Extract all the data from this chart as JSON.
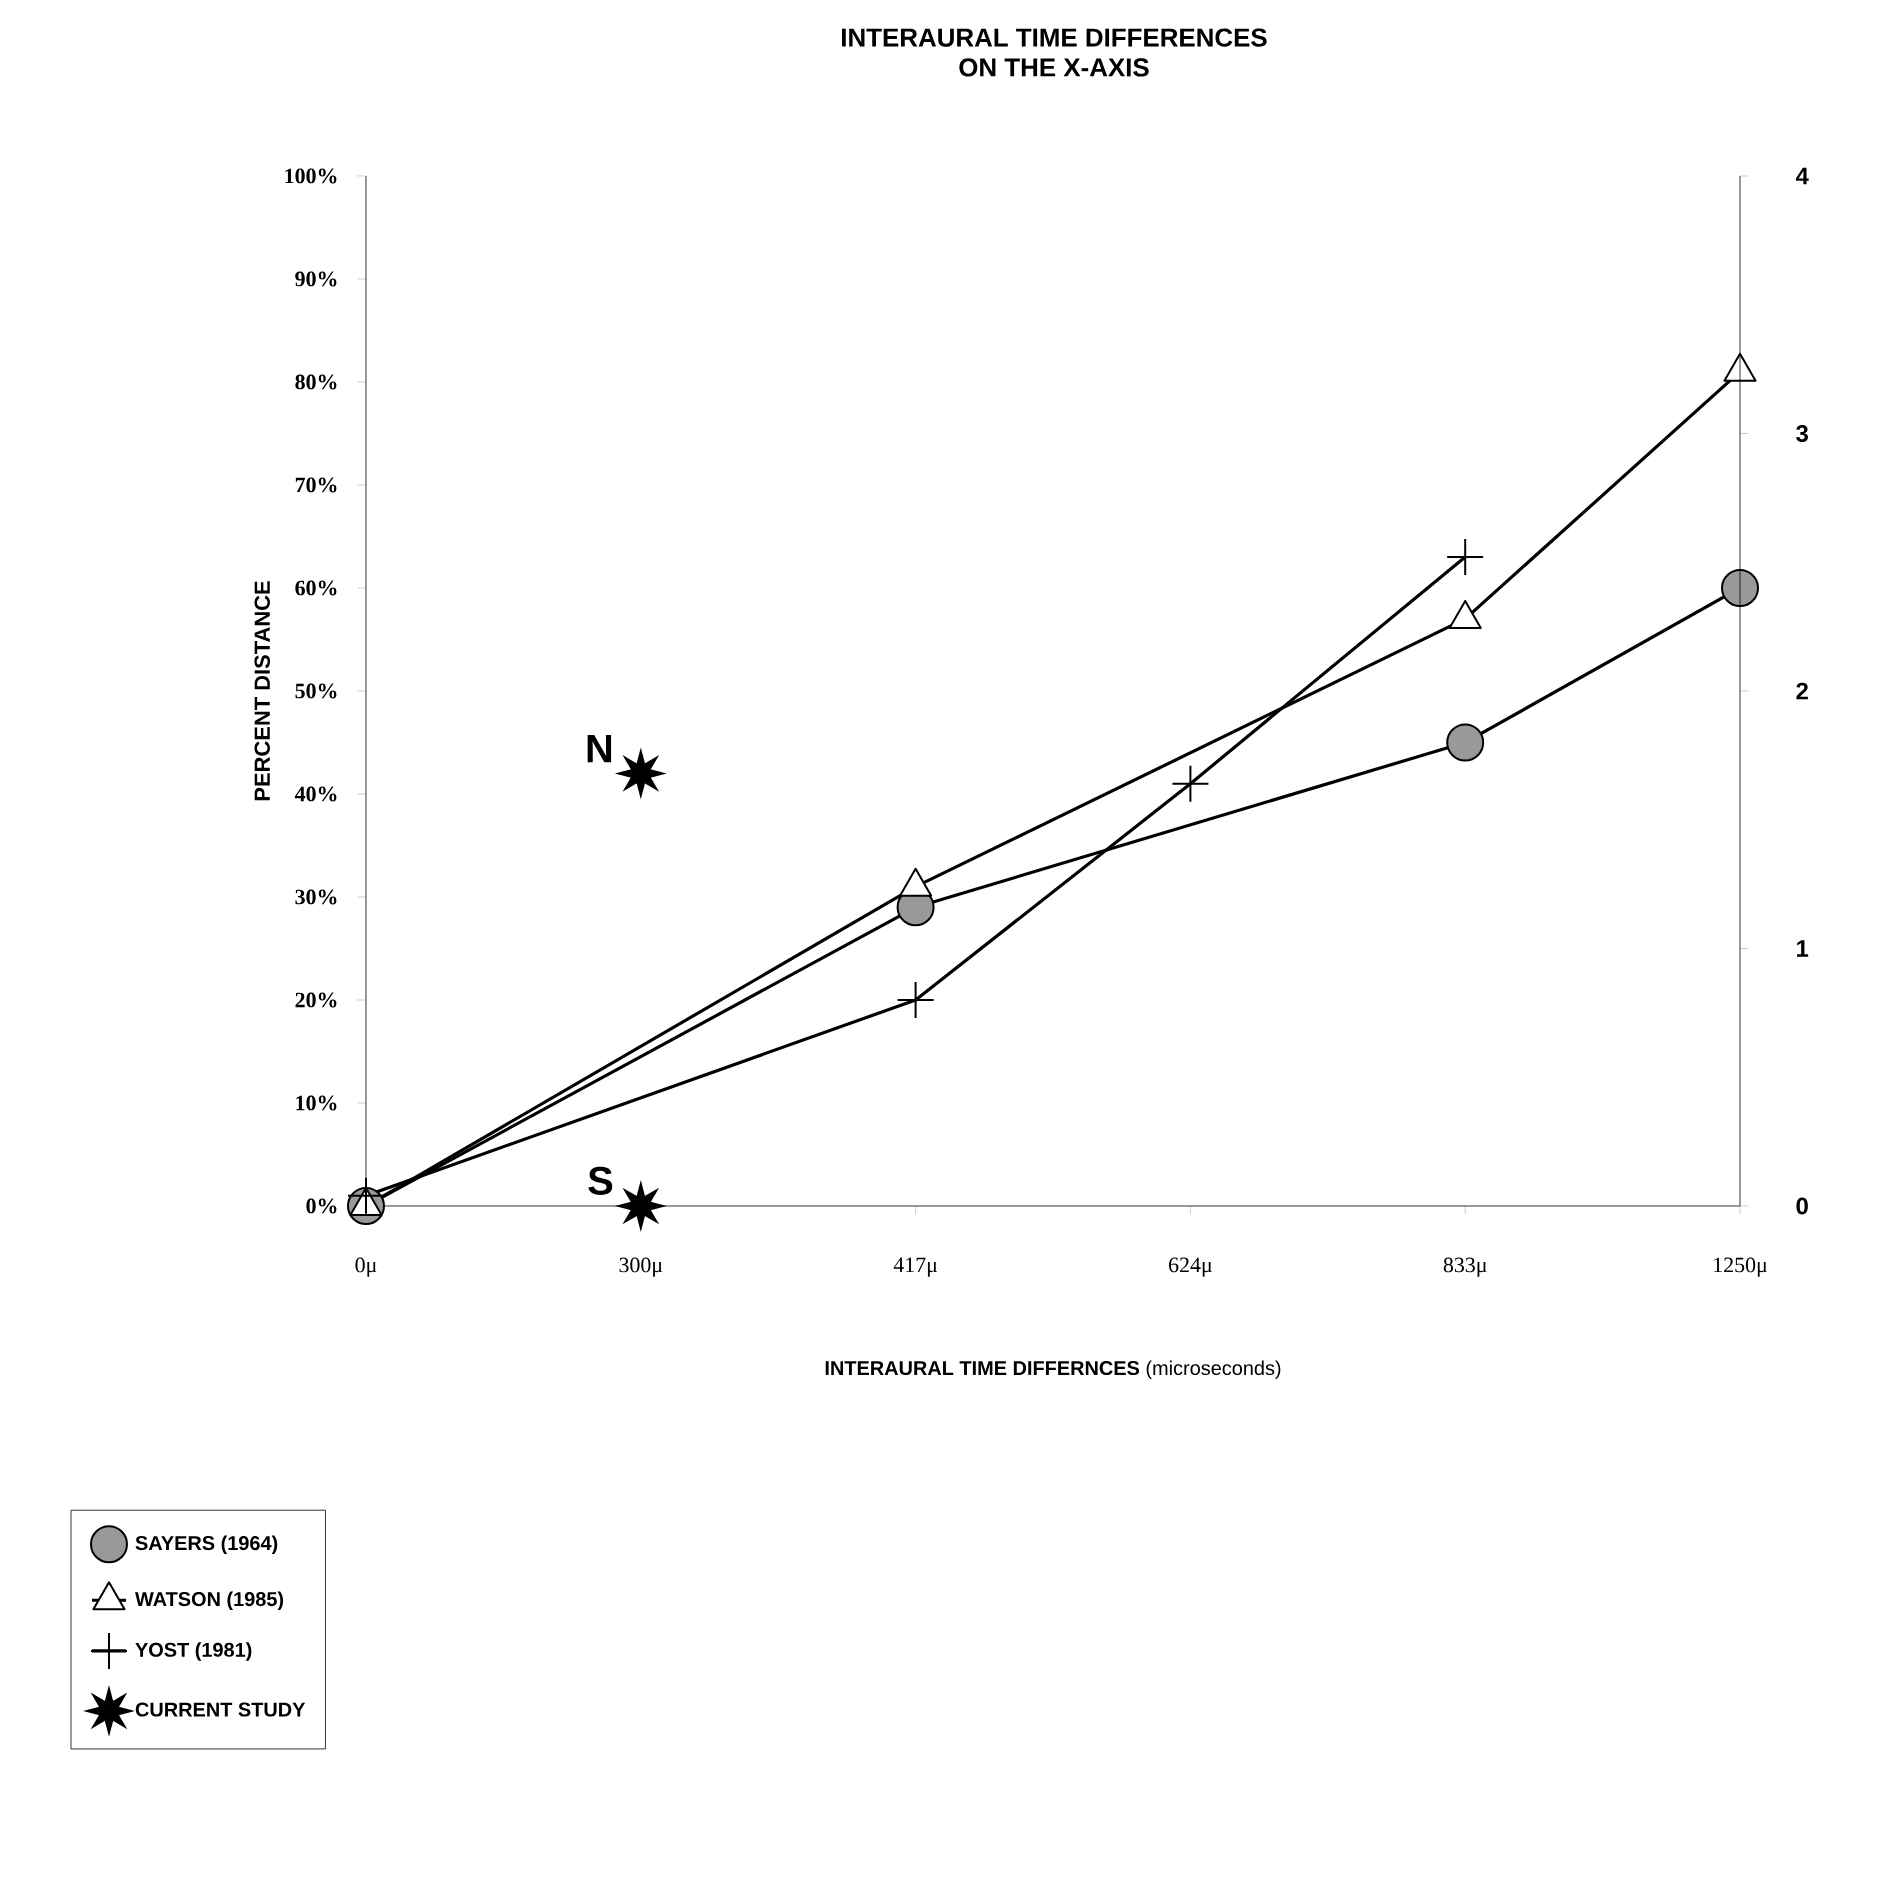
{
  "chart_data": {
    "type": "line",
    "title": "INTERAURAL TIME DIFFERENCES\nON THE X-AXIS",
    "xlabel": "**INTERAURAL TIME DIFFERNCES** (microseconds)",
    "ylabel": "PERCENT DISTANCE",
    "categories": [
      "0μ",
      "300μ",
      "417μ",
      "624μ",
      "833μ",
      "1250μ"
    ],
    "ylim": [
      0,
      100
    ],
    "yticks": [
      {
        "value": 0,
        "label": "0%"
      },
      {
        "value": 10,
        "label": "10%"
      },
      {
        "value": 20,
        "label": "20%"
      },
      {
        "value": 30,
        "label": "30%"
      },
      {
        "value": 40,
        "label": "40%"
      },
      {
        "value": 50,
        "label": "50%"
      },
      {
        "value": 60,
        "label": "60%"
      },
      {
        "value": 70,
        "label": "70%"
      },
      {
        "value": 80,
        "label": "80%"
      },
      {
        "value": 90,
        "label": "90%"
      },
      {
        "value": 100,
        "label": "100%"
      }
    ],
    "y2lim": [
      0,
      4
    ],
    "y2ticks": [
      0,
      1,
      2,
      3,
      4
    ],
    "series": [
      {
        "name": "SAYERS (1964)",
        "color": "#999999",
        "marker": "circle",
        "values": [
          0,
          null,
          29,
          null,
          45,
          60
        ]
      },
      {
        "name": "WATSON (1985)",
        "color": "#ffffff",
        "marker": "triangle",
        "values": [
          0,
          null,
          31,
          null,
          57,
          81
        ]
      },
      {
        "name": "YOST (1981)",
        "color": "#000000",
        "marker": "cross",
        "values": [
          1,
          null,
          20,
          41,
          63,
          null
        ]
      },
      {
        "name": "CURRENT STUDY",
        "type": "scatter",
        "color": "#000000",
        "marker": "star",
        "x": [
          "300μ",
          "300μ"
        ],
        "values": [
          42,
          0
        ]
      }
    ],
    "annotations": [
      {
        "text": "N",
        "x": "300μ",
        "y": 42
      },
      {
        "text": "S",
        "x": "300μ",
        "y": 0
      }
    ],
    "grid": false,
    "legend": "bottom left"
  }
}
